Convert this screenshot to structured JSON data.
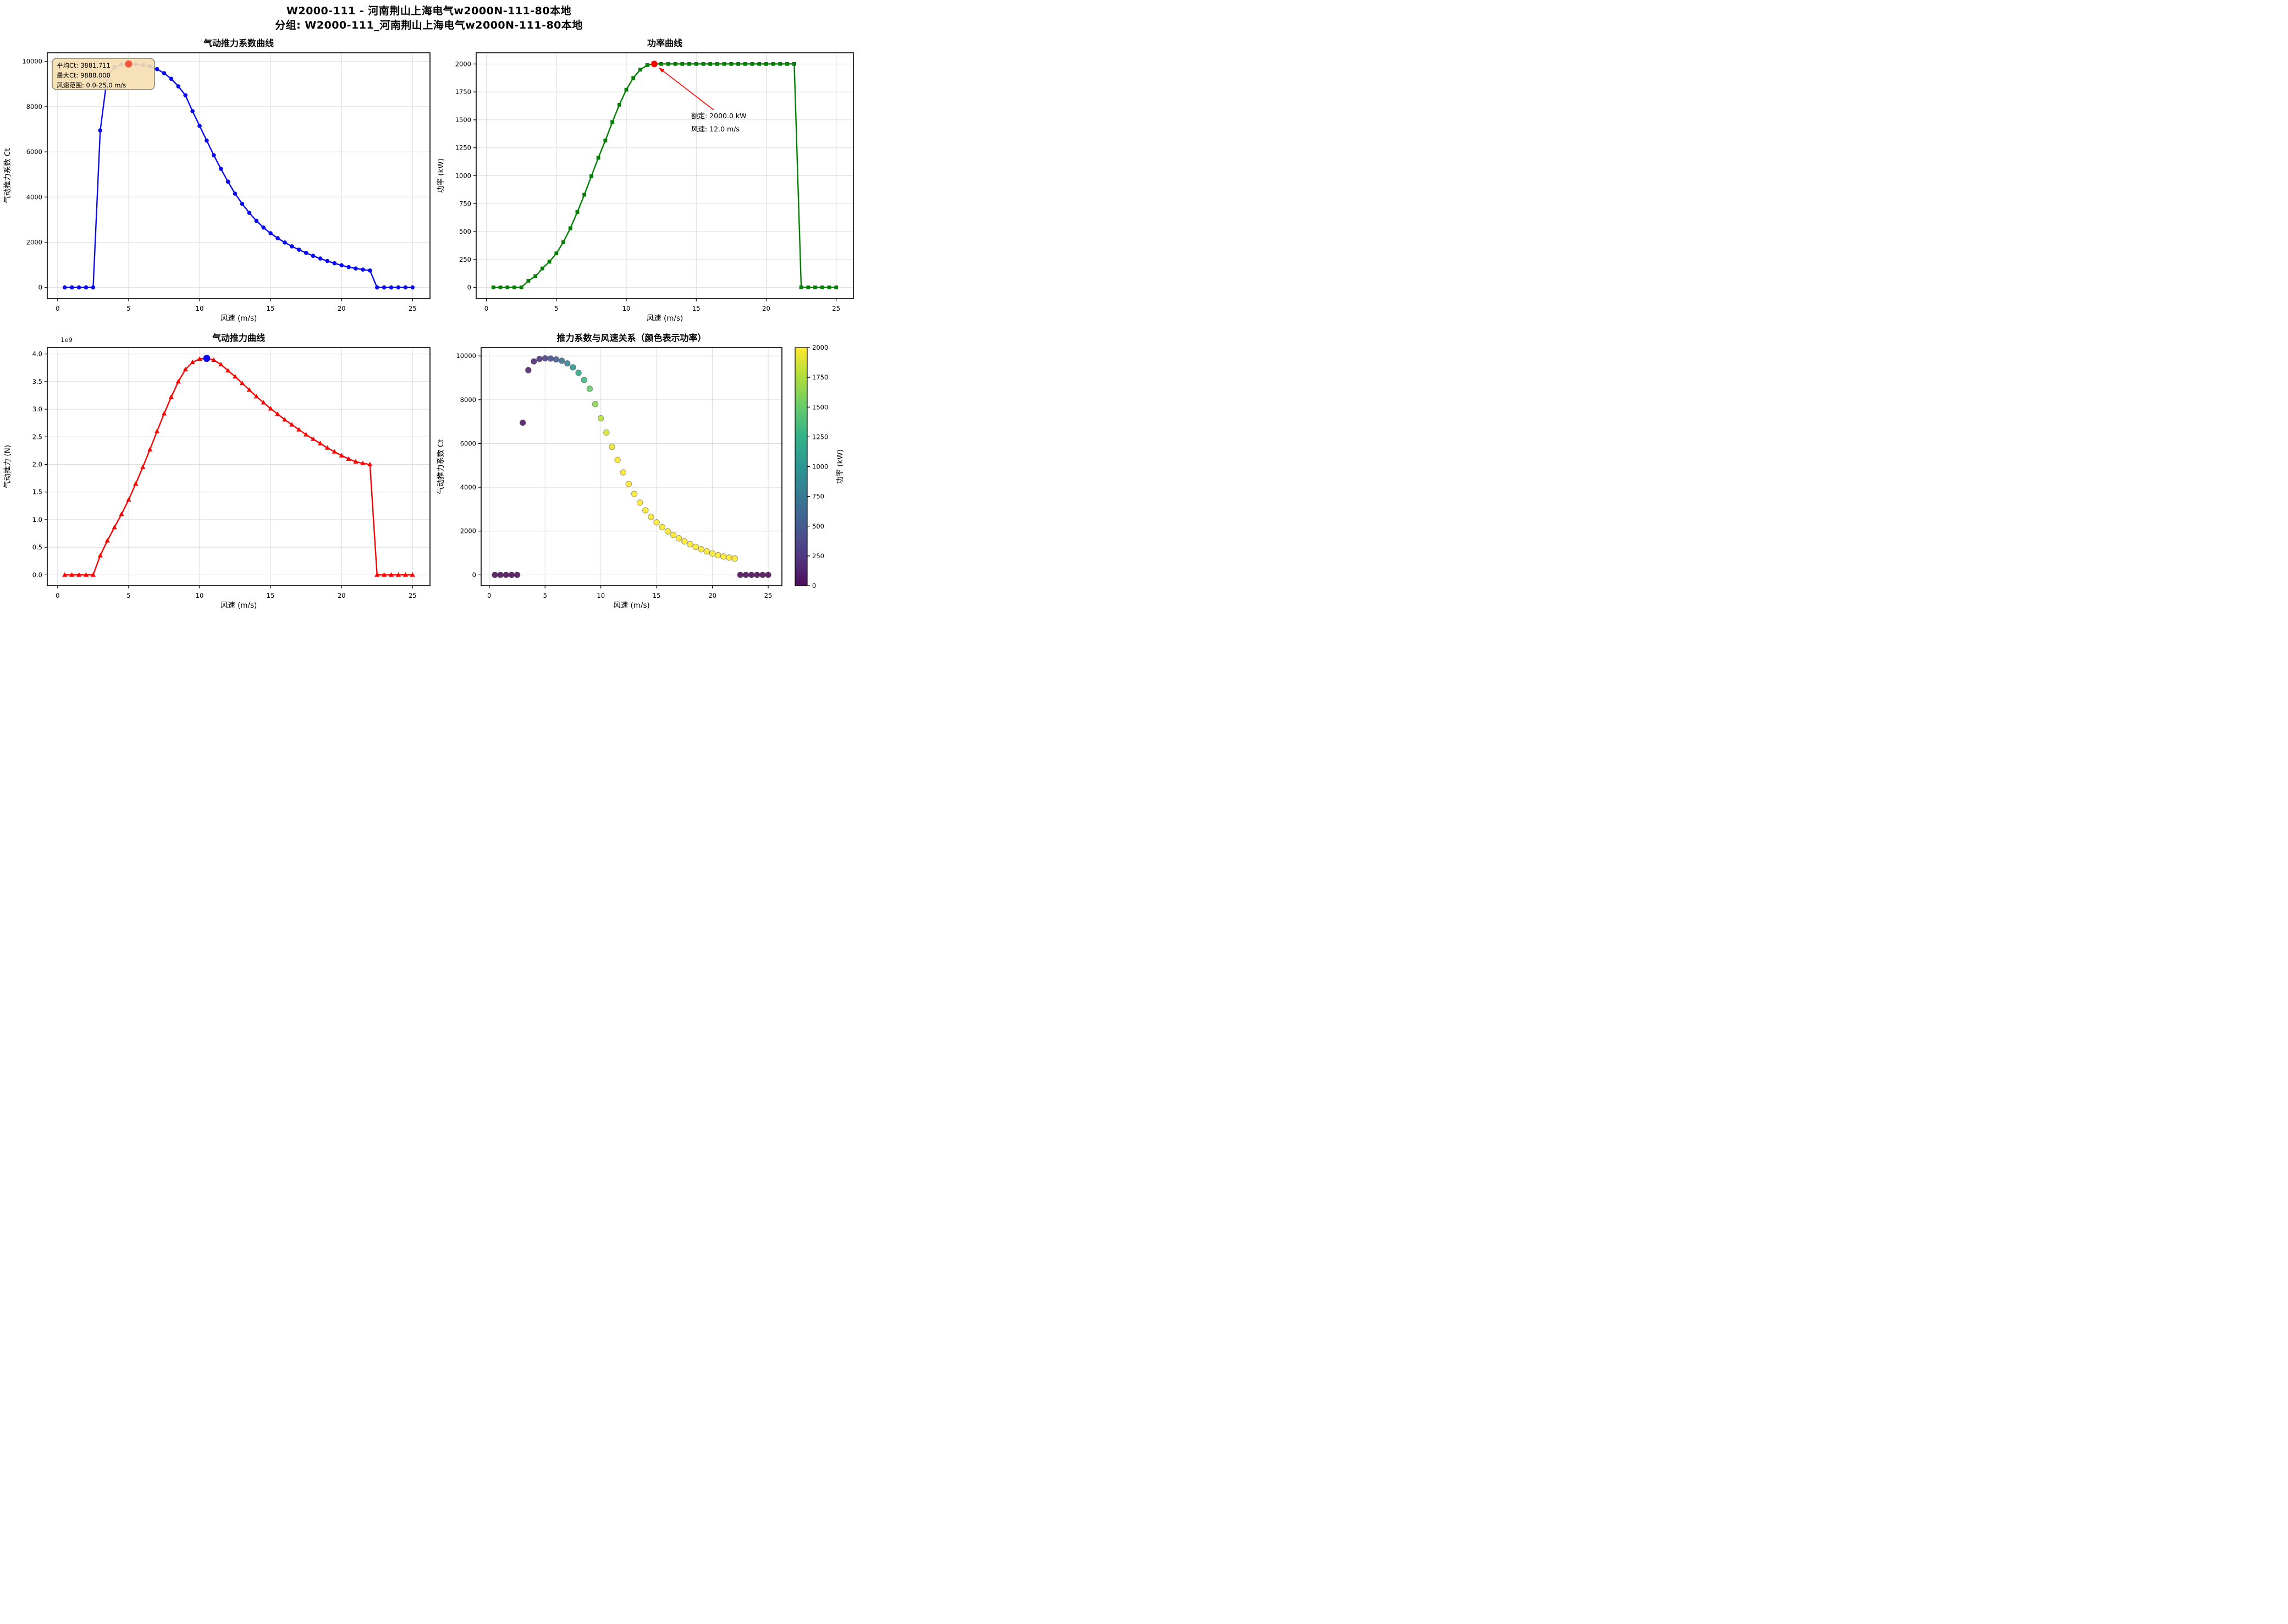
{
  "header": {
    "line1": "W2000-111 - 河南荆山上海电气w2000N-111-80本地",
    "line2": "分组: W2000-111_河南荆山上海电气w2000N-111-80本地"
  },
  "chart_data": [
    {
      "id": "ct-curve",
      "type": "line",
      "title": "气动推力系数曲线",
      "xlabel": "风速 (m/s)",
      "ylabel": "气动推力系数 Ct",
      "line_color": "#0a0af0",
      "marker": "circle",
      "grid": true,
      "xlim": [
        -0.73,
        26.23
      ],
      "ylim": [
        -494,
        10382
      ],
      "xticks": [
        0,
        5,
        10,
        15,
        20,
        25
      ],
      "yticks": [
        0,
        2000,
        4000,
        6000,
        8000,
        10000
      ],
      "x": [
        0.5,
        1,
        1.5,
        2,
        2.5,
        3,
        3.5,
        4,
        4.5,
        5,
        5.5,
        6,
        6.5,
        7,
        7.5,
        8,
        8.5,
        9,
        9.5,
        10,
        10.5,
        11,
        11.5,
        12,
        12.5,
        13,
        13.5,
        14,
        14.5,
        15,
        15.5,
        16,
        16.5,
        17,
        17.5,
        18,
        18.5,
        19,
        19.5,
        20,
        20.5,
        21,
        21.5,
        22,
        22.5,
        23,
        23.5,
        24,
        24.5,
        25
      ],
      "y": [
        0,
        0,
        0,
        0,
        0,
        6950,
        9350,
        9750,
        9860,
        9888,
        9880,
        9840,
        9780,
        9660,
        9480,
        9230,
        8900,
        8500,
        7800,
        7150,
        6500,
        5850,
        5250,
        4680,
        4150,
        3700,
        3300,
        2950,
        2650,
        2400,
        2180,
        1990,
        1820,
        1670,
        1530,
        1400,
        1280,
        1170,
        1070,
        980,
        900,
        840,
        790,
        750,
        0,
        0,
        0,
        0,
        0,
        0
      ],
      "highlight_point": {
        "x": 5.0,
        "y": 9888,
        "color": "#f4543e"
      },
      "info_box": {
        "lines": [
          "平均Ct: 3881.711",
          "最大Ct: 9888.000",
          "风速范围: 0.0-25.0 m/s"
        ],
        "bg_color": "#f5deb3",
        "border_color": "#8a8468"
      }
    },
    {
      "id": "power-curve",
      "type": "line",
      "title": "功率曲线",
      "xlabel": "风速 (m/s)",
      "ylabel": "功率 (kW)",
      "line_color": "#008000",
      "marker": "square",
      "grid": true,
      "xlim": [
        -0.73,
        26.23
      ],
      "ylim": [
        -100,
        2100
      ],
      "xticks": [
        0,
        5,
        10,
        15,
        20,
        25
      ],
      "yticks": [
        0,
        250,
        500,
        750,
        1000,
        1250,
        1500,
        1750,
        2000
      ],
      "x": [
        0.5,
        1,
        1.5,
        2,
        2.5,
        3,
        3.5,
        4,
        4.5,
        5,
        5.5,
        6,
        6.5,
        7,
        7.5,
        8,
        8.5,
        9,
        9.5,
        10,
        10.5,
        11,
        11.5,
        12,
        12.5,
        13,
        13.5,
        14,
        14.5,
        15,
        15.5,
        16,
        16.5,
        17,
        17.5,
        18,
        18.5,
        19,
        19.5,
        20,
        20.5,
        21,
        21.5,
        22,
        22.5,
        23,
        23.5,
        24,
        24.5,
        25
      ],
      "y": [
        0,
        0,
        0,
        0,
        0,
        60,
        100,
        170,
        230,
        305,
        405,
        530,
        675,
        830,
        995,
        1160,
        1315,
        1480,
        1635,
        1770,
        1875,
        1950,
        1990,
        2000,
        2000,
        2000,
        2000,
        2000,
        2000,
        2000,
        2000,
        2000,
        2000,
        2000,
        2000,
        2000,
        2000,
        2000,
        2000,
        2000,
        2000,
        2000,
        2000,
        2000,
        0,
        0,
        0,
        0,
        0,
        0
      ],
      "rated_annotation": {
        "lines": [
          "额定: 2000.0 kW",
          "风速: 12.0 m/s"
        ],
        "color": "#ff0000",
        "point": {
          "x": 12.0,
          "y": 2000.0,
          "color": "#ff0000"
        }
      }
    },
    {
      "id": "thrust-curve",
      "type": "line",
      "title": "气动推力曲线",
      "xlabel": "风速 (m/s)",
      "ylabel": "气动推力 (N)",
      "line_color": "#ff0000",
      "marker": "triangle",
      "grid": true,
      "offset_text": "1e9",
      "xlim": [
        -0.73,
        26.23
      ],
      "ylim": [
        -196000000,
        4116000000
      ],
      "xticks": [
        0,
        5,
        10,
        15,
        20,
        25
      ],
      "yticks": [
        0,
        500000000.0,
        1000000000.0,
        1500000000.0,
        2000000000.0,
        2500000000.0,
        3000000000.0,
        3500000000.0,
        4000000000.0
      ],
      "ytick_labels": [
        "0.0",
        "0.5",
        "1.0",
        "1.5",
        "2.0",
        "2.5",
        "3.0",
        "3.5",
        "4.0"
      ],
      "x": [
        0.5,
        1,
        1.5,
        2,
        2.5,
        3,
        3.5,
        4,
        4.5,
        5,
        5.5,
        6,
        6.5,
        7,
        7.5,
        8,
        8.5,
        9,
        9.5,
        10,
        10.5,
        11,
        11.5,
        12,
        12.5,
        13,
        13.5,
        14,
        14.5,
        15,
        15.5,
        16,
        16.5,
        17,
        17.5,
        18,
        18.5,
        19,
        19.5,
        20,
        20.5,
        21,
        21.5,
        22,
        22.5,
        23,
        23.5,
        24,
        24.5,
        25
      ],
      "y": [
        0,
        0,
        0,
        0,
        0,
        350000000.0,
        620000000.0,
        860000000.0,
        1100000000.0,
        1360000000.0,
        1650000000.0,
        1950000000.0,
        2270000000.0,
        2600000000.0,
        2920000000.0,
        3220000000.0,
        3500000000.0,
        3720000000.0,
        3850000000.0,
        3910000000.0,
        3920000000.0,
        3890000000.0,
        3810000000.0,
        3700000000.0,
        3590000000.0,
        3470000000.0,
        3350000000.0,
        3230000000.0,
        3120000000.0,
        3010000000.0,
        2910000000.0,
        2810000000.0,
        2720000000.0,
        2630000000.0,
        2540000000.0,
        2460000000.0,
        2380000000.0,
        2300000000.0,
        2230000000.0,
        2160000000.0,
        2100000000.0,
        2050000000.0,
        2020000000.0,
        2000000000.0,
        0,
        0,
        0,
        0,
        0,
        0
      ],
      "highlight_point": {
        "x": 10.5,
        "y": 3920000000.0,
        "color": "#0b0bee"
      }
    },
    {
      "id": "ct-vs-wind-scatter",
      "type": "scatter",
      "title": "推力系数与风速关系（颜色表示功率）",
      "xlabel": "风速 (m/s)",
      "ylabel": "气动推力系数 Ct",
      "colormap": "viridis",
      "grid": true,
      "xlim": [
        -0.73,
        26.23
      ],
      "ylim": [
        -494,
        10382
      ],
      "xticks": [
        0,
        5,
        10,
        15,
        20,
        25
      ],
      "yticks": [
        0,
        2000,
        4000,
        6000,
        8000,
        10000
      ],
      "x": [
        0.5,
        1,
        1.5,
        2,
        2.5,
        3,
        3.5,
        4,
        4.5,
        5,
        5.5,
        6,
        6.5,
        7,
        7.5,
        8,
        8.5,
        9,
        9.5,
        10,
        10.5,
        11,
        11.5,
        12,
        12.5,
        13,
        13.5,
        14,
        14.5,
        15,
        15.5,
        16,
        16.5,
        17,
        17.5,
        18,
        18.5,
        19,
        19.5,
        20,
        20.5,
        21,
        21.5,
        22,
        22.5,
        23,
        23.5,
        24,
        24.5,
        25
      ],
      "y": [
        0,
        0,
        0,
        0,
        0,
        6950,
        9350,
        9750,
        9860,
        9888,
        9880,
        9840,
        9780,
        9660,
        9480,
        9230,
        8900,
        8500,
        7800,
        7150,
        6500,
        5850,
        5250,
        4680,
        4150,
        3700,
        3300,
        2950,
        2650,
        2400,
        2180,
        1990,
        1820,
        1670,
        1530,
        1400,
        1280,
        1170,
        1070,
        980,
        900,
        840,
        790,
        750,
        0,
        0,
        0,
        0,
        0,
        0
      ],
      "color_values": [
        0,
        0,
        0,
        0,
        0,
        60,
        100,
        170,
        230,
        305,
        405,
        530,
        675,
        830,
        995,
        1160,
        1315,
        1480,
        1635,
        1770,
        1875,
        1950,
        1990,
        2000,
        2000,
        2000,
        2000,
        2000,
        2000,
        2000,
        2000,
        2000,
        2000,
        2000,
        2000,
        2000,
        2000,
        2000,
        2000,
        2000,
        2000,
        2000,
        2000,
        2000,
        0,
        0,
        0,
        0,
        0,
        0
      ],
      "colorbar": {
        "label": "功率 (kW)",
        "min": 0,
        "max": 2000,
        "ticks": [
          0,
          250,
          500,
          750,
          1000,
          1250,
          1500,
          1750,
          2000
        ]
      }
    }
  ]
}
